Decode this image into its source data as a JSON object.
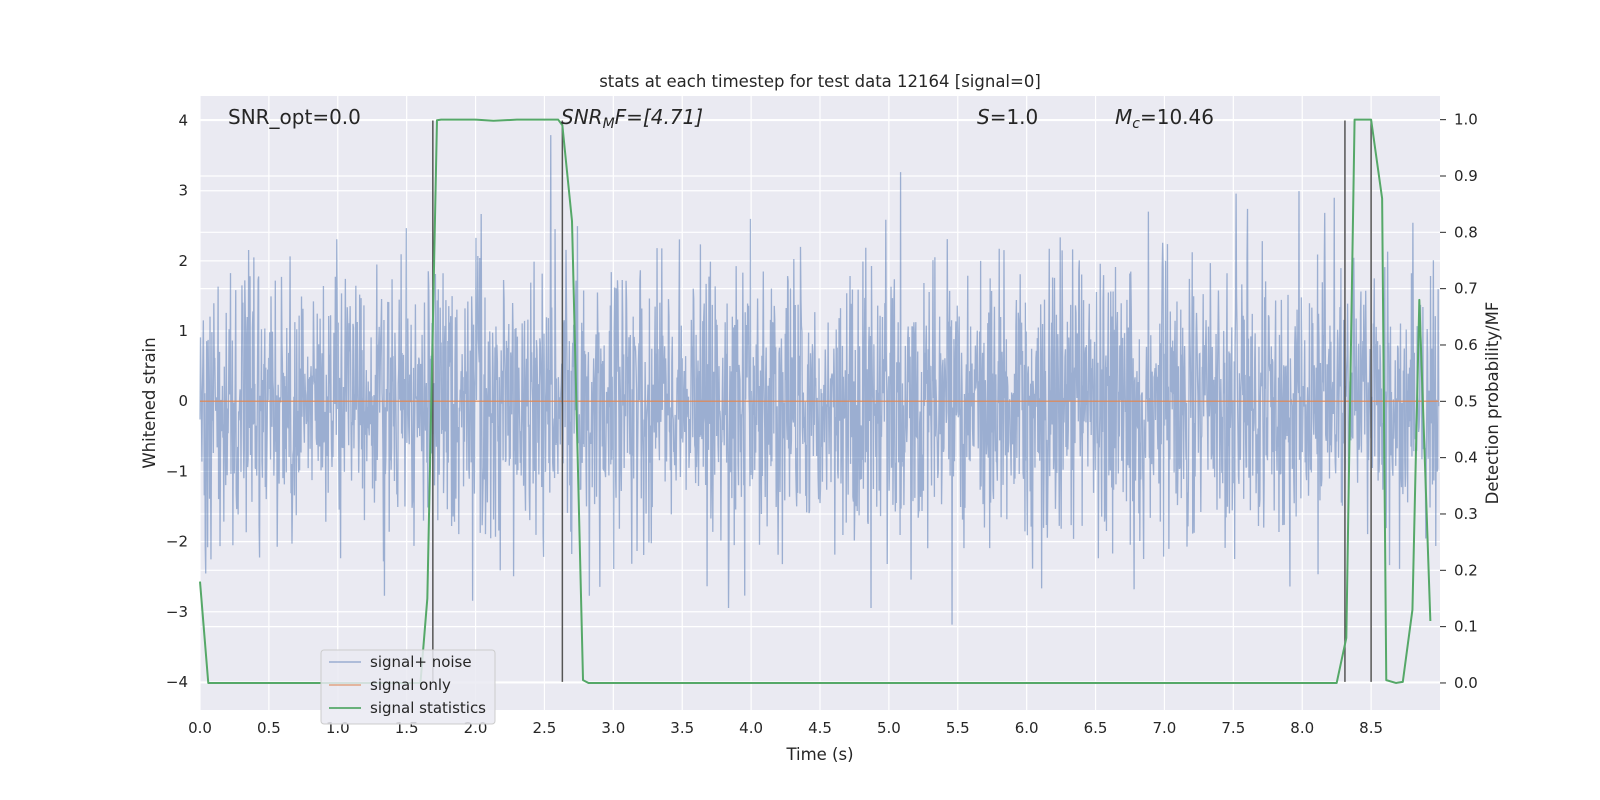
{
  "chart_data": {
    "type": "line",
    "title": "stats at each timestep for test data 12164 [signal=0]",
    "xlabel": "Time (s)",
    "ylabel": "Whitened strain",
    "y2label": "Detection probability/MF",
    "xlim": [
      0.0,
      9.0
    ],
    "ylim": [
      -4.4,
      4.35
    ],
    "y2lim": [
      -0.048,
      1.042
    ],
    "xticks": [
      "0.0",
      "0.5",
      "1.0",
      "1.5",
      "2.0",
      "2.5",
      "3.0",
      "3.5",
      "4.0",
      "4.5",
      "5.0",
      "5.5",
      "6.0",
      "6.5",
      "7.0",
      "7.5",
      "8.0",
      "8.5"
    ],
    "yticks": [
      "4",
      "3",
      "2",
      "1",
      "0",
      "−1",
      "−2",
      "−3",
      "−4"
    ],
    "y2ticks": [
      "1.0",
      "0.9",
      "0.8",
      "0.7",
      "0.6",
      "0.5",
      "0.4",
      "0.3",
      "0.2",
      "0.1",
      "0.0"
    ],
    "grid": true,
    "legend_position": "lower-left",
    "annotations": {
      "snr_opt": "SNR_opt=0.0",
      "snr_mf_main": "SNR",
      "snr_mf_sub": "M",
      "snr_mf_rest": "F=[4.71]",
      "s_main": "S",
      "s_rest": "=1.0",
      "mc_main": "M",
      "mc_sub": "c",
      "mc_rest": "=10.46"
    },
    "series": [
      {
        "name": "signal+ noise",
        "color": "#4c72b0",
        "description_values": {
          "noise_std": 1.0,
          "max_abs": 4.0,
          "duration_s": 8.99
        }
      },
      {
        "name": "signal only",
        "color": "#dd8452",
        "x": [
          0.0,
          8.99
        ],
        "y": [
          0.0,
          0.0
        ]
      },
      {
        "name": "signal statistics",
        "color": "#55a868",
        "axis": "right",
        "x": [
          0.0,
          0.06,
          0.1,
          0.15,
          1.6,
          1.65,
          1.72,
          1.75,
          2.0,
          2.13,
          2.3,
          2.6,
          2.63,
          2.7,
          2.78,
          2.82,
          8.25,
          8.32,
          8.38,
          8.5,
          8.58,
          8.61,
          8.68,
          8.73,
          8.8,
          8.85,
          8.93
        ],
        "y": [
          0.18,
          0.0,
          0.0,
          0.0,
          0.0,
          0.15,
          0.999,
          1.0,
          1.0,
          0.998,
          1.0,
          1.0,
          0.99,
          0.82,
          0.005,
          0.0,
          0.0,
          0.08,
          1.0,
          1.0,
          0.86,
          0.005,
          0.0,
          0.002,
          0.13,
          0.68,
          0.11
        ]
      }
    ],
    "vlines_x": [
      1.69,
      2.63,
      8.31,
      8.5
    ]
  }
}
